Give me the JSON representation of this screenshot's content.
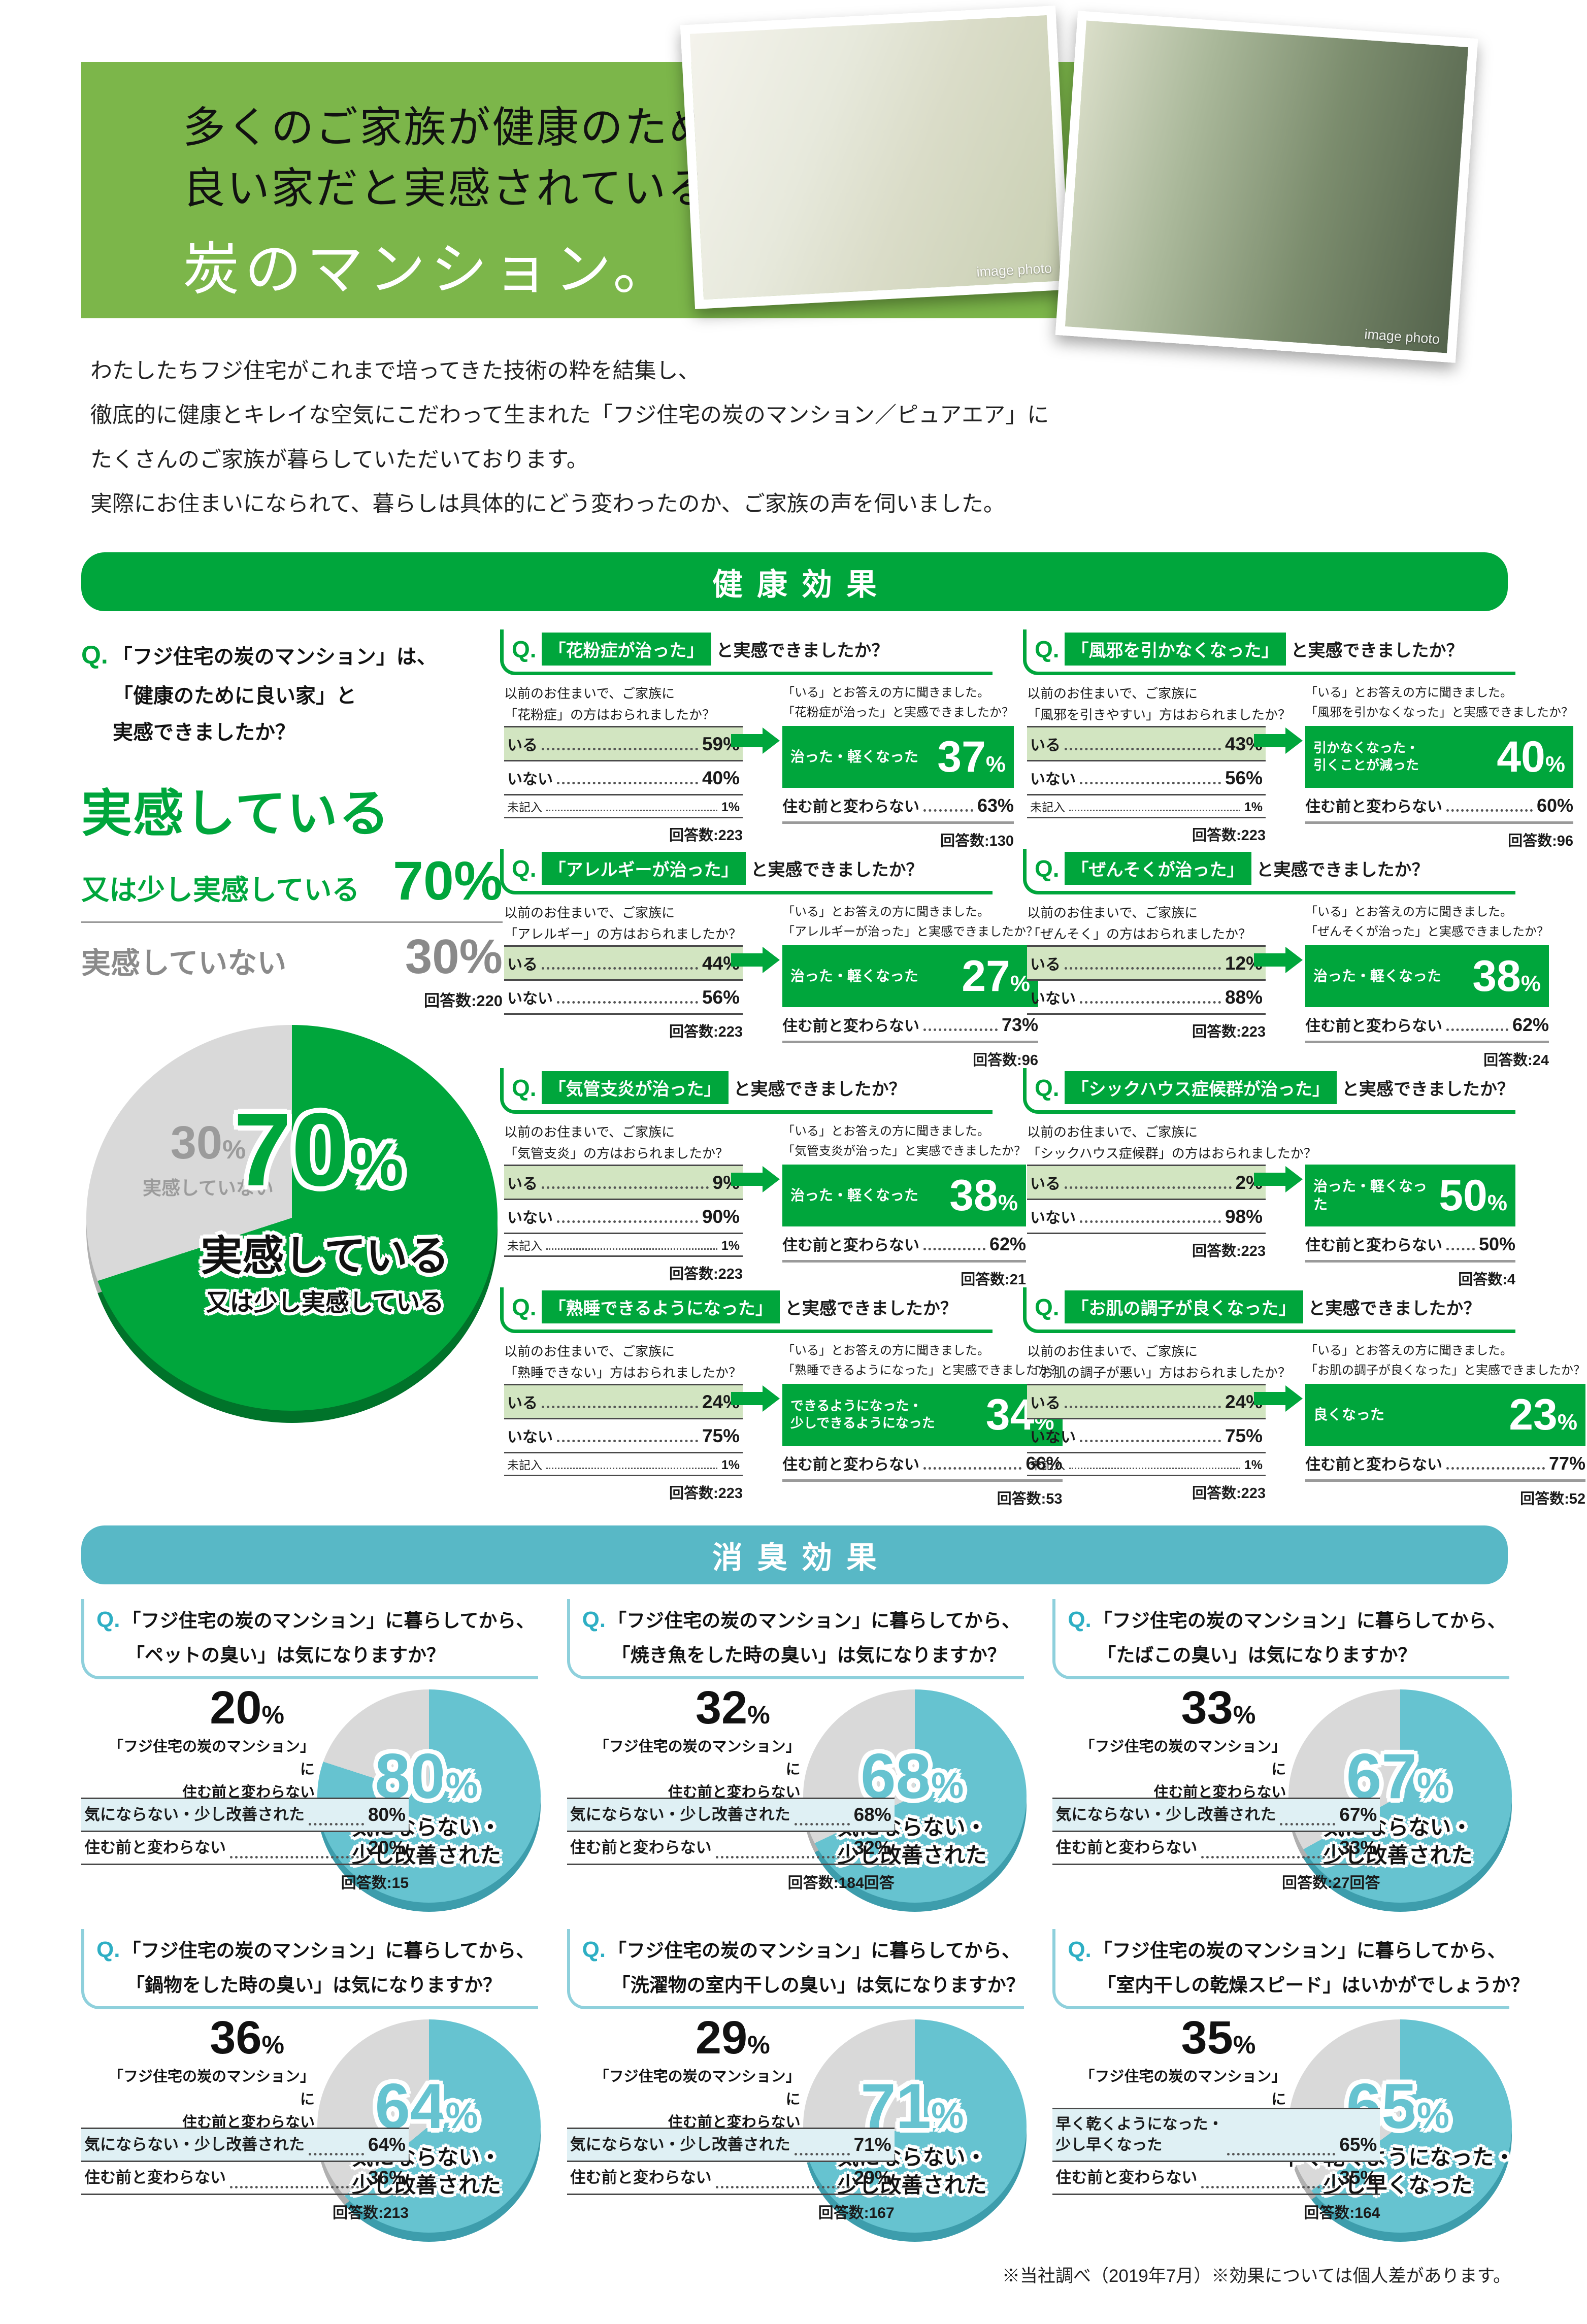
{
  "misc": {
    "q": "Q.",
    "pct": "%"
  },
  "colors": {
    "brand_green": "#00a63c",
    "brand_green_dark": "#00732a",
    "band_green": "#7cb64a",
    "light_green_row": "#d2e5c1",
    "teal_banner": "#58b8c6",
    "pie_teal": "#66c3d0",
    "pie_teal_dark": "#3d9dac",
    "legend_teal_bg": "#dff0f4",
    "pie_gray": "#d9d9d9",
    "pie_gray_dark": "#b0b0b0",
    "gray_text": "#8a8a8a"
  },
  "header": {
    "line1": "多くのご家族が健康のために",
    "line2": "良い家だと実感されている",
    "brand": "炭のマンション。",
    "photo_caption": "image photo",
    "intro": [
      "わたしたちフジ住宅がこれまで培ってきた技術の粋を結集し、",
      "徹底的に健康とキレイな空気にこだわって生まれた「フジ住宅の炭のマンション／ピュアエア」に",
      "たくさんのご家族が暮らしていただいております。",
      "実際にお住まいになられて、暮らしは具体的にどう変わったのか、ご家族の声を伺いました。"
    ]
  },
  "sections": {
    "health": {
      "title": "健康効果"
    },
    "smell": {
      "title": "消臭効果"
    }
  },
  "overview": {
    "q_lines": [
      "「フジ住宅の炭のマンション」は、",
      "「健康のために良い家」と",
      "実感できましたか？"
    ],
    "answer_main": "実感している",
    "answer_sub": "又は少し実感している",
    "answer_value": "70%",
    "negative_label": "実感していない",
    "negative_value": "30%",
    "responses": "回答数:220",
    "pie": {
      "positive_pct": 70,
      "negative_pct": 30,
      "center_num": "70"
    }
  },
  "health_blocks": [
    {
      "title": "「花粉症が治った」",
      "suffix": "と実感できましたか？",
      "pre_q1": "以前のお住まいで、ご家族に",
      "pre_q2": "「花粉症」の方はおられましたか？",
      "row_iru_label": "いる",
      "row_iru_value": "59%",
      "row_inai_label": "いない",
      "row_inai_value": "40%",
      "row_mikinyu_label": "未記入",
      "row_mikinyu_value": "1%",
      "pre_responses": "回答数:223",
      "ask1": "「いる」とお答えの方に聞きました。",
      "ask2": "「花粉症が治った」と実感できましたか？",
      "result_label1": "治った・軽くなった",
      "result_label2": null,
      "result_value": "37",
      "unchanged_label": "住む前と変わらない",
      "unchanged_value": "63%",
      "responses": "回答数:130"
    },
    {
      "title": "「風邪を引かなくなった」",
      "suffix": "と実感できましたか？",
      "pre_q1": "以前のお住まいで、ご家族に",
      "pre_q2": "「風邪を引きやすい」方はおられましたか？",
      "row_iru_label": "いる",
      "row_iru_value": "43%",
      "row_inai_label": "いない",
      "row_inai_value": "56%",
      "row_mikinyu_label": "未記入",
      "row_mikinyu_value": "1%",
      "pre_responses": "回答数:223",
      "ask1": "「いる」とお答えの方に聞きました。",
      "ask2": "「風邪を引かなくなった」と実感できましたか？",
      "result_label1": "引かなくなった・",
      "result_label2": "引くことが減った",
      "result_value": "40",
      "unchanged_label": "住む前と変わらない",
      "unchanged_value": "60%",
      "responses": "回答数:96"
    },
    {
      "title": "「アレルギーが治った」",
      "suffix": "と実感できましたか？",
      "pre_q1": "以前のお住まいで、ご家族に",
      "pre_q2": "「アレルギー」の方はおられましたか？",
      "row_iru_label": "いる",
      "row_iru_value": "44%",
      "row_inai_label": "いない",
      "row_inai_value": "56%",
      "row_mikinyu_label": null,
      "row_mikinyu_value": null,
      "pre_responses": "回答数:223",
      "ask1": "「いる」とお答えの方に聞きました。",
      "ask2": "「アレルギーが治った」と実感できましたか？",
      "result_label1": "治った・軽くなった",
      "result_label2": null,
      "result_value": "27",
      "unchanged_label": "住む前と変わらない",
      "unchanged_value": "73%",
      "responses": "回答数:96"
    },
    {
      "title": "「ぜんそくが治った」",
      "suffix": "と実感できましたか？",
      "pre_q1": "以前のお住まいで、ご家族に",
      "pre_q2": "「ぜんそく」の方はおられましたか？",
      "row_iru_label": "いる",
      "row_iru_value": "12%",
      "row_inai_label": "いない",
      "row_inai_value": "88%",
      "row_mikinyu_label": null,
      "row_mikinyu_value": null,
      "pre_responses": "回答数:223",
      "ask1": "「いる」とお答えの方に聞きました。",
      "ask2": "「ぜんそくが治った」と実感できましたか？",
      "result_label1": "治った・軽くなった",
      "result_label2": null,
      "result_value": "38",
      "unchanged_label": "住む前と変わらない",
      "unchanged_value": "62%",
      "responses": "回答数:24"
    },
    {
      "title": "「気管支炎が治った」",
      "suffix": "と実感できましたか？",
      "pre_q1": "以前のお住まいで、ご家族に",
      "pre_q2": "「気管支炎」の方はおられましたか？",
      "row_iru_label": "いる",
      "row_iru_value": "9%",
      "row_inai_label": "いない",
      "row_inai_value": "90%",
      "row_mikinyu_label": "未記入",
      "row_mikinyu_value": "1%",
      "pre_responses": "回答数:223",
      "ask1": "「いる」とお答えの方に聞きました。",
      "ask2": "「気管支炎が治った」と実感できましたか？",
      "result_label1": "治った・軽くなった",
      "result_label2": null,
      "result_value": "38",
      "unchanged_label": "住む前と変わらない",
      "unchanged_value": "62%",
      "responses": "回答数:21"
    },
    {
      "title": "「シックハウス症候群が治った」",
      "suffix": "と実感できましたか？",
      "pre_q1": "以前のお住まいで、ご家族に",
      "pre_q2": "「シックハウス症候群」の方はおられましたか？",
      "row_iru_label": "いる",
      "row_iru_value": "2%",
      "row_inai_label": "いない",
      "row_inai_value": "98%",
      "row_mikinyu_label": null,
      "row_mikinyu_value": null,
      "pre_responses": "回答数:223",
      "ask1": null,
      "ask2": null,
      "result_label1": "治った・軽くなった",
      "result_label2": null,
      "result_value": "50",
      "unchanged_label": "住む前と変わらない",
      "unchanged_value": "50%",
      "responses": "回答数:4"
    },
    {
      "title": "「熟睡できるようになった」",
      "suffix": "と実感できましたか？",
      "pre_q1": "以前のお住まいで、ご家族に",
      "pre_q2": "「熟睡できない」方はおられましたか？",
      "row_iru_label": "いる",
      "row_iru_value": "24%",
      "row_inai_label": "いない",
      "row_inai_value": "75%",
      "row_mikinyu_label": "未記入",
      "row_mikinyu_value": "1%",
      "pre_responses": "回答数:223",
      "ask1": "「いる」とお答えの方に聞きました。",
      "ask2": "「熟睡できるようになった」と実感できましたか？",
      "result_label1": "できるようになった・",
      "result_label2": "少しできるようになった",
      "result_value": "34",
      "unchanged_label": "住む前と変わらない",
      "unchanged_value": "66%",
      "responses": "回答数:53"
    },
    {
      "title": "「お肌の調子が良くなった」",
      "suffix": "と実感できましたか？",
      "pre_q1": "以前のお住まいで、ご家族に",
      "pre_q2": "「お肌の調子が悪い」方はおられましたか？",
      "row_iru_label": "いる",
      "row_iru_value": "24%",
      "row_inai_label": "いない",
      "row_inai_value": "75%",
      "row_mikinyu_label": "未記入",
      "row_mikinyu_value": "1%",
      "pre_responses": "回答数:223",
      "ask1": "「いる」とお答えの方に聞きました。",
      "ask2": "「お肌の調子が良くなった」と実感できましたか？",
      "result_label1": "良くなった",
      "result_label2": null,
      "result_value": "23",
      "unchanged_label": "住む前と変わらない",
      "unchanged_value": "77%",
      "responses": "回答数:52"
    }
  ],
  "smell_blocks": [
    {
      "q1": "「フジ住宅の炭のマンション」に暮らしてから、",
      "q2": "「ペットの臭い」は気になりますか？",
      "teal_pct": 80,
      "gray_num": "20",
      "gray_cap1": "「フジ住宅の炭のマンション」に",
      "gray_cap2": "住む前と変わらない",
      "teal_num": "80",
      "teal_label1": "気にならない・",
      "teal_label2": "少し改善された",
      "leg1_label": "気にならない・少し改善された",
      "leg1_label2": null,
      "leg1_value": "80%",
      "leg2_label": "住む前と変わらない",
      "leg2_value": "20%",
      "responses": "回答数:15"
    },
    {
      "q1": "「フジ住宅の炭のマンション」に暮らしてから、",
      "q2": "「焼き魚をした時の臭い」は気になりますか？",
      "teal_pct": 68,
      "gray_num": "32",
      "gray_cap1": "「フジ住宅の炭のマンション」に",
      "gray_cap2": "住む前と変わらない",
      "teal_num": "68",
      "teal_label1": "気にならない・",
      "teal_label2": "少し改善された",
      "leg1_label": "気にならない・少し改善された",
      "leg1_label2": null,
      "leg1_value": "68%",
      "leg2_label": "住む前と変わらない",
      "leg2_value": "32%",
      "responses": "回答数:184回答"
    },
    {
      "q1": "「フジ住宅の炭のマンション」に暮らしてから、",
      "q2": "「たばこの臭い」は気になりますか？",
      "teal_pct": 67,
      "gray_num": "33",
      "gray_cap1": "「フジ住宅の炭のマンション」に",
      "gray_cap2": "住む前と変わらない",
      "teal_num": "67",
      "teal_label1": "気にならない・",
      "teal_label2": "少し改善された",
      "leg1_label": "気にならない・少し改善された",
      "leg1_label2": null,
      "leg1_value": "67%",
      "leg2_label": "住む前と変わらない",
      "leg2_value": "33%",
      "responses": "回答数:27回答"
    },
    {
      "q1": "「フジ住宅の炭のマンション」に暮らしてから、",
      "q2": "「鍋物をした時の臭い」は気になりますか？",
      "teal_pct": 64,
      "gray_num": "36",
      "gray_cap1": "「フジ住宅の炭のマンション」に",
      "gray_cap2": "住む前と変わらない",
      "teal_num": "64",
      "teal_label1": "気にならない・",
      "teal_label2": "少し改善された",
      "leg1_label": "気にならない・少し改善された",
      "leg1_label2": null,
      "leg1_value": "64%",
      "leg2_label": "住む前と変わらない",
      "leg2_value": "36%",
      "responses": "回答数:213"
    },
    {
      "q1": "「フジ住宅の炭のマンション」に暮らしてから、",
      "q2": "「洗濯物の室内干しの臭い」は気になりますか？",
      "teal_pct": 71,
      "gray_num": "29",
      "gray_cap1": "「フジ住宅の炭のマンション」に",
      "gray_cap2": "住む前と変わらない",
      "teal_num": "71",
      "teal_label1": "気にならない・",
      "teal_label2": "少し改善された",
      "leg1_label": "気にならない・少し改善された",
      "leg1_label2": null,
      "leg1_value": "71%",
      "leg2_label": "住む前と変わらない",
      "leg2_value": "29%",
      "responses": "回答数:167"
    },
    {
      "q1": "「フジ住宅の炭のマンション」に暮らしてから、",
      "q2": "「室内干しの乾燥スピード」はいかがでしょうか？",
      "teal_pct": 65,
      "gray_num": "35",
      "gray_cap1": "「フジ住宅の炭のマンション」に",
      "gray_cap2": "住む前と変わらない",
      "teal_num": "65",
      "teal_label1": "早く乾くようになった・",
      "teal_label2": "少し早くなった",
      "leg1_label": "早く乾くようになった・",
      "leg1_label2": "少し早くなった",
      "leg1_value": "65%",
      "leg2_label": "住む前と変わらない",
      "leg2_value": "35%",
      "responses": "回答数:164"
    }
  ],
  "page": {
    "footnote": "※当社調べ（2019年7月）※効果については個人差があります。"
  }
}
